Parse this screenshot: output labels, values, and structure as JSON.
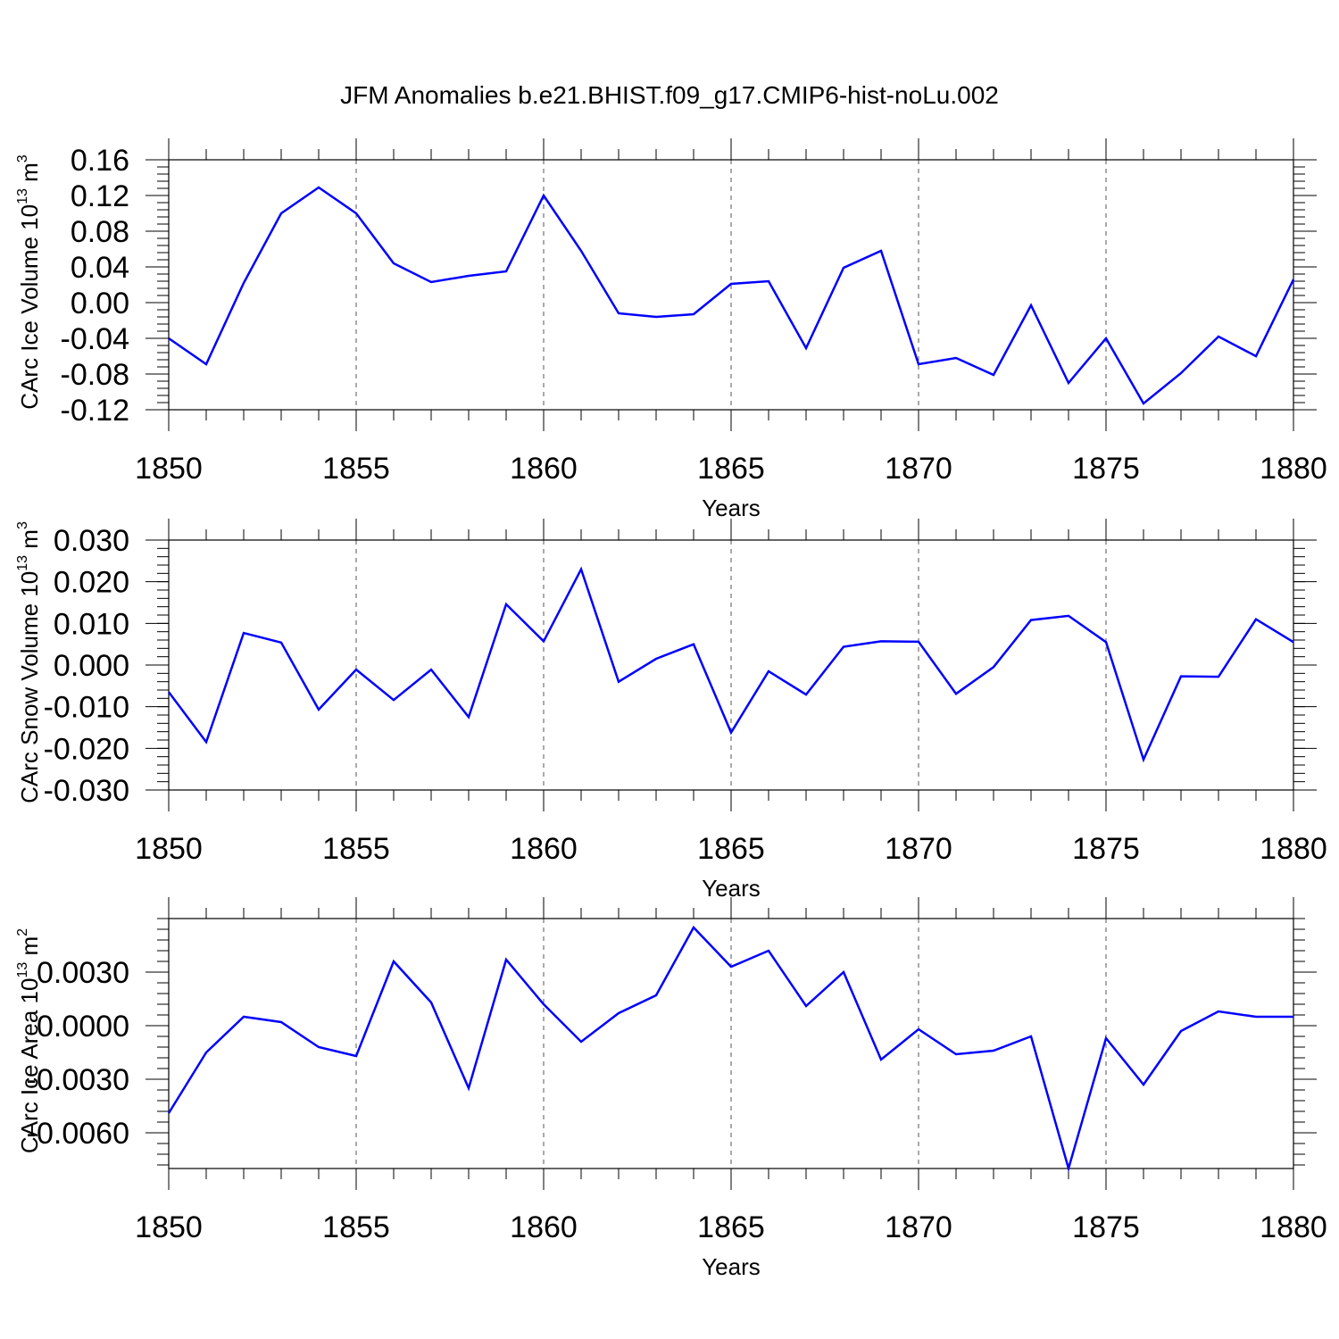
{
  "figure": {
    "title": "JFM Anomalies b.e21.BHIST.f09_g17.CMIP6-hist-noLu.002"
  },
  "chart_data": [
    {
      "type": "line",
      "ylabel": "CArc Ice Volume 10",
      "ylabel_sup": "13",
      "ylabel_unit": "m",
      "ylabel_unit_sup": "3",
      "xlabel": "Years",
      "xlim": [
        1850,
        1880
      ],
      "ylim": [
        -0.12,
        0.16
      ],
      "yticks": [
        0.16,
        0.12,
        0.08,
        0.04,
        0.0,
        -0.04,
        -0.08,
        -0.12
      ],
      "ytick_labels": [
        "0.16",
        "0.12",
        "0.08",
        "0.04",
        "0.00",
        "-0.04",
        "-0.08",
        "-0.12"
      ],
      "xticks": [
        1850,
        1855,
        1860,
        1865,
        1870,
        1875,
        1880
      ],
      "xtick_labels": [
        "1850",
        "1855",
        "1860",
        "1865",
        "1870",
        "1875",
        "1880"
      ],
      "grid": "vertical dashed at major x ticks",
      "color": "#0000ff",
      "x": [
        1850,
        1851,
        1852,
        1853,
        1854,
        1855,
        1856,
        1857,
        1858,
        1859,
        1860,
        1861,
        1862,
        1863,
        1864,
        1865,
        1866,
        1867,
        1868,
        1869,
        1870,
        1871,
        1872,
        1873,
        1874,
        1875,
        1876,
        1877,
        1878,
        1879,
        1880
      ],
      "y": [
        -0.04,
        -0.069,
        0.022,
        0.1,
        0.129,
        0.1,
        0.044,
        0.023,
        0.03,
        0.035,
        0.12,
        0.058,
        -0.012,
        -0.016,
        -0.013,
        0.021,
        0.024,
        -0.051,
        0.039,
        0.058,
        -0.069,
        -0.062,
        -0.081,
        -0.003,
        -0.09,
        -0.04,
        -0.113,
        -0.079,
        -0.038,
        -0.06,
        0.026
      ]
    },
    {
      "type": "line",
      "ylabel": "CArc Snow Volume 10",
      "ylabel_sup": "13",
      "ylabel_unit": "m",
      "ylabel_unit_sup": "3",
      "xlabel": "Years",
      "xlim": [
        1850,
        1880
      ],
      "ylim": [
        -0.03,
        0.03
      ],
      "yticks": [
        0.03,
        0.02,
        0.01,
        0.0,
        -0.01,
        -0.02,
        -0.03
      ],
      "ytick_labels": [
        "0.030",
        "0.020",
        "0.010",
        "0.000",
        "-0.010",
        "-0.020",
        "-0.030"
      ],
      "xticks": [
        1850,
        1855,
        1860,
        1865,
        1870,
        1875,
        1880
      ],
      "xtick_labels": [
        "1850",
        "1855",
        "1860",
        "1865",
        "1870",
        "1875",
        "1880"
      ],
      "grid": "vertical dashed at major x ticks",
      "color": "#0000ff",
      "x": [
        1850,
        1851,
        1852,
        1853,
        1854,
        1855,
        1856,
        1857,
        1858,
        1859,
        1860,
        1861,
        1862,
        1863,
        1864,
        1865,
        1866,
        1867,
        1868,
        1869,
        1870,
        1871,
        1872,
        1873,
        1874,
        1875,
        1876,
        1877,
        1878,
        1879,
        1880
      ],
      "y": [
        -0.0065,
        -0.0185,
        0.0077,
        0.0054,
        -0.0107,
        -0.0011,
        -0.0084,
        -0.0011,
        -0.0125,
        0.0146,
        0.0057,
        0.023,
        -0.004,
        0.0015,
        0.005,
        -0.0162,
        -0.0015,
        -0.0071,
        0.0044,
        0.0057,
        0.0056,
        -0.0069,
        -0.0005,
        0.0108,
        0.0118,
        0.0055,
        -0.0227,
        -0.0027,
        -0.0028,
        0.011,
        0.0055
      ]
    },
    {
      "type": "line",
      "ylabel": "CArc Ice Area 10",
      "ylabel_sup": "13",
      "ylabel_unit": "m",
      "ylabel_unit_sup": "2",
      "xlabel": "Years",
      "xlim": [
        1850,
        1880
      ],
      "ylim": [
        -0.008,
        0.006
      ],
      "yticks": [
        0.003,
        0.0,
        -0.003,
        -0.006
      ],
      "ytick_labels": [
        "0.0030",
        "0.0000",
        "-0.0030",
        "-0.0060"
      ],
      "xticks": [
        1850,
        1855,
        1860,
        1865,
        1870,
        1875,
        1880
      ],
      "xtick_labels": [
        "1850",
        "1855",
        "1860",
        "1865",
        "1870",
        "1875",
        "1880"
      ],
      "grid": "vertical dashed at major x ticks",
      "color": "#0000ff",
      "x": [
        1850,
        1851,
        1852,
        1853,
        1854,
        1855,
        1856,
        1857,
        1858,
        1859,
        1860,
        1861,
        1862,
        1863,
        1864,
        1865,
        1866,
        1867,
        1868,
        1869,
        1870,
        1871,
        1872,
        1873,
        1874,
        1875,
        1876,
        1877,
        1878,
        1879,
        1880
      ],
      "y": [
        -0.0049,
        -0.0015,
        0.0005,
        0.0002,
        -0.0012,
        -0.0017,
        0.0036,
        0.0013,
        -0.0035,
        0.0037,
        0.0012,
        -0.0009,
        0.0007,
        0.0017,
        0.0055,
        0.0033,
        0.0042,
        0.0011,
        0.003,
        -0.0019,
        -0.0002,
        -0.0016,
        -0.0014,
        -0.0006,
        -0.008,
        -0.0007,
        -0.0033,
        -0.0003,
        0.0008,
        0.0005,
        0.0005
      ]
    }
  ]
}
